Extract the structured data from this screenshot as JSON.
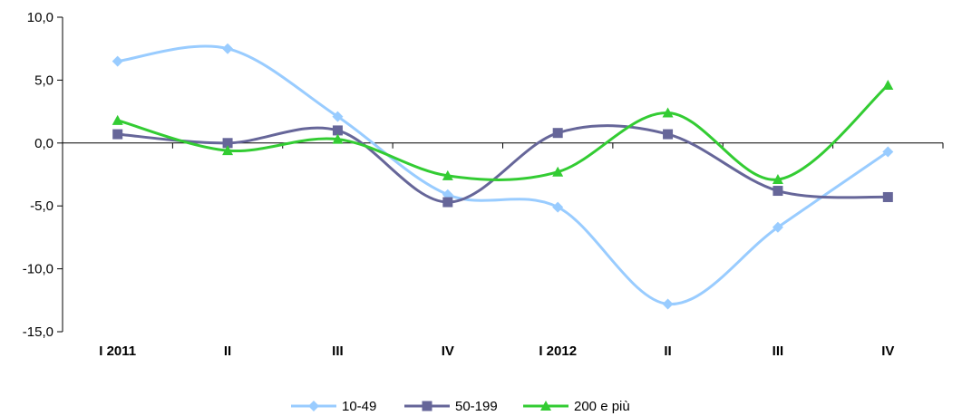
{
  "chart_data": {
    "type": "line",
    "categories": [
      "I 2011",
      "II",
      "III",
      "IV",
      "I 2012",
      "II",
      "III",
      "IV"
    ],
    "ylim": [
      -15,
      10
    ],
    "yticks": [
      10,
      5,
      0,
      -5,
      -10,
      -15
    ],
    "ytick_labels": [
      "10,0",
      "5,0",
      "0,0",
      "-5,0",
      "-10,0",
      "-15,0"
    ],
    "grid": false,
    "legend_position": "bottom",
    "series": [
      {
        "name": "10-49",
        "color": "#99ccff",
        "marker": "diamond",
        "values": [
          6.5,
          7.5,
          2.1,
          -4.1,
          -5.1,
          -12.8,
          -6.7,
          -0.7
        ]
      },
      {
        "name": "50-199",
        "color": "#666699",
        "marker": "square",
        "values": [
          0.7,
          0.0,
          1.0,
          -4.7,
          0.8,
          0.7,
          -3.8,
          -4.3
        ]
      },
      {
        "name": "200 e più",
        "color": "#33cc33",
        "marker": "triangle",
        "values": [
          1.8,
          -0.6,
          0.3,
          -2.6,
          -2.3,
          2.4,
          -2.9,
          4.6
        ]
      }
    ]
  }
}
